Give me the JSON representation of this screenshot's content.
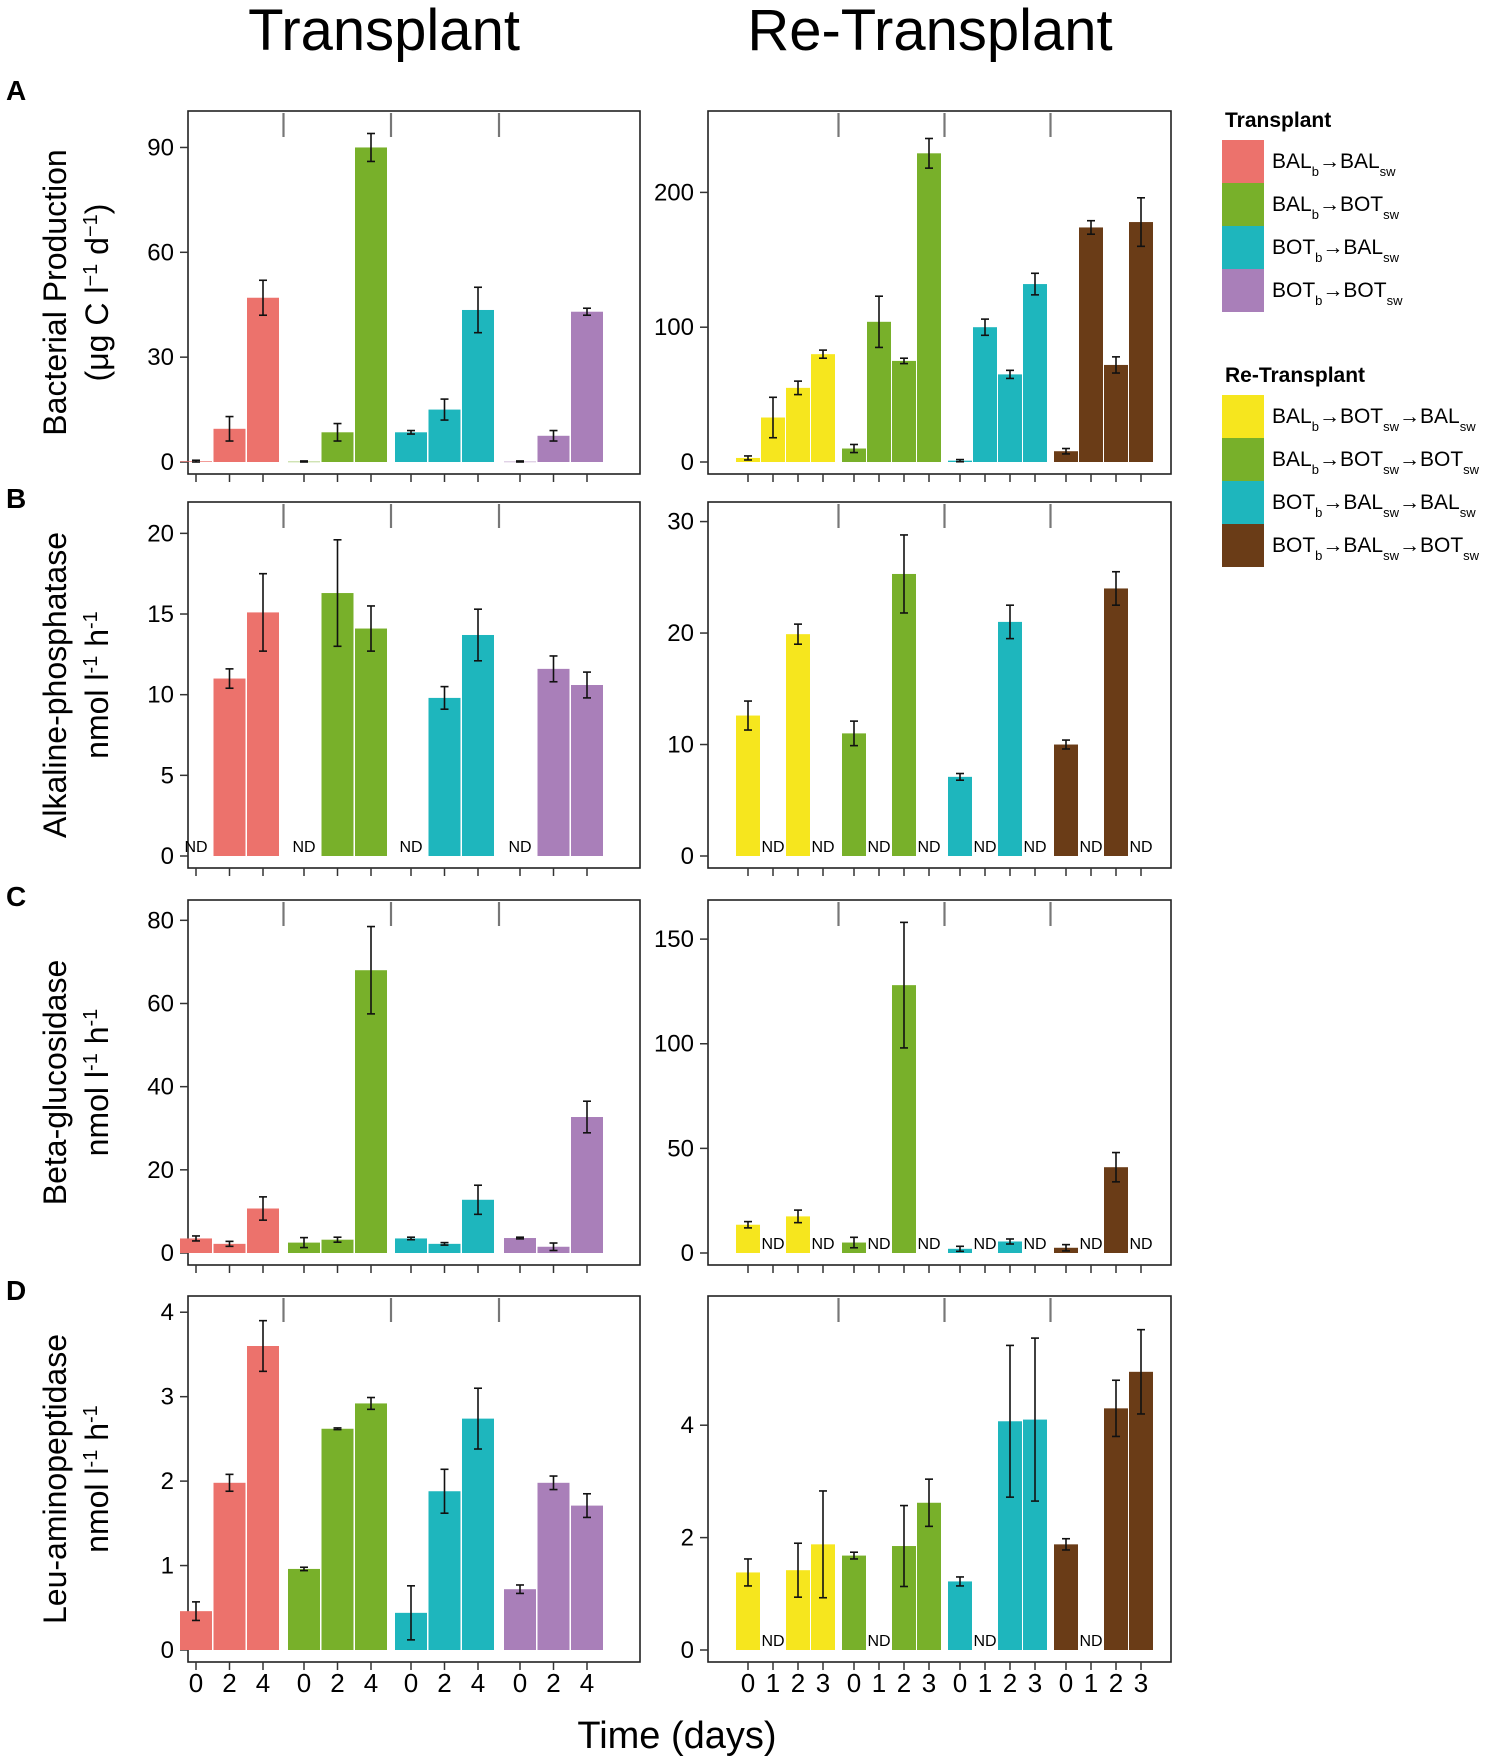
{
  "titles": {
    "transplant": "Transplant",
    "retransplant": "Re-Transplant"
  },
  "x_label": "Time (days)",
  "colors": {
    "BAL_BAL": "#ec726c",
    "BAL_BOT": "#78b02a",
    "BOT_BAL": "#1eb6bd",
    "BOT_BOT": "#a97fb9",
    "R_BAL_BOT_BAL": "#f6e61e",
    "R_BAL_BOT_BOT": "#78b02a",
    "R_BOT_BAL_BAL": "#1eb6bd",
    "R_BOT_BAL_BOT": "#6a3c17"
  },
  "legend": {
    "transplant": {
      "title": "Transplant",
      "items": [
        {
          "parts": [
            [
              "BAL",
              ""
            ],
            [
              "b",
              "sub"
            ],
            [
              "→",
              ""
            ],
            [
              "BAL",
              ""
            ],
            [
              "sw",
              "sub"
            ]
          ],
          "color_key": "BAL_BAL"
        },
        {
          "parts": [
            [
              "BAL",
              ""
            ],
            [
              "b",
              "sub"
            ],
            [
              "→",
              ""
            ],
            [
              "BOT",
              ""
            ],
            [
              "sw",
              "sub"
            ]
          ],
          "color_key": "BAL_BOT"
        },
        {
          "parts": [
            [
              "BOT",
              ""
            ],
            [
              "b",
              "sub"
            ],
            [
              "→",
              ""
            ],
            [
              "BAL",
              ""
            ],
            [
              "sw",
              "sub"
            ]
          ],
          "color_key": "BOT_BAL"
        },
        {
          "parts": [
            [
              "BOT",
              ""
            ],
            [
              "b",
              "sub"
            ],
            [
              "→",
              ""
            ],
            [
              "BOT",
              ""
            ],
            [
              "sw",
              "sub"
            ]
          ],
          "color_key": "BOT_BOT"
        }
      ]
    },
    "retransplant": {
      "title": "Re-Transplant",
      "items": [
        {
          "parts": [
            [
              "BAL",
              ""
            ],
            [
              "b",
              "sub"
            ],
            [
              "→",
              ""
            ],
            [
              "BOT",
              ""
            ],
            [
              "sw",
              "sub"
            ],
            [
              "→",
              ""
            ],
            [
              "BAL",
              ""
            ],
            [
              "sw",
              "sub"
            ]
          ],
          "color_key": "R_BAL_BOT_BAL"
        },
        {
          "parts": [
            [
              "BAL",
              ""
            ],
            [
              "b",
              "sub"
            ],
            [
              "→",
              ""
            ],
            [
              "BOT",
              ""
            ],
            [
              "sw",
              "sub"
            ],
            [
              "→",
              ""
            ],
            [
              "BOT",
              ""
            ],
            [
              "sw",
              "sub"
            ]
          ],
          "color_key": "R_BAL_BOT_BOT"
        },
        {
          "parts": [
            [
              "BOT",
              ""
            ],
            [
              "b",
              "sub"
            ],
            [
              "→",
              ""
            ],
            [
              "BAL",
              ""
            ],
            [
              "sw",
              "sub"
            ],
            [
              "→",
              ""
            ],
            [
              "BAL",
              ""
            ],
            [
              "sw",
              "sub"
            ]
          ],
          "color_key": "R_BOT_BAL_BAL"
        },
        {
          "parts": [
            [
              "BOT",
              ""
            ],
            [
              "b",
              "sub"
            ],
            [
              "→",
              ""
            ],
            [
              "BAL",
              ""
            ],
            [
              "sw",
              "sub"
            ],
            [
              "→",
              ""
            ],
            [
              "BOT",
              ""
            ],
            [
              "sw",
              "sub"
            ]
          ],
          "color_key": "R_BOT_BAL_BOT"
        }
      ]
    }
  },
  "chart_data": [
    {
      "panel": "A",
      "side": "transplant",
      "type": "bar",
      "ylabel": [
        [
          [
            "Bacterial Production",
            ""
          ]
        ],
        [
          [
            "(μg C l",
            ""
          ],
          [
            "−1",
            "sup"
          ],
          [
            " d",
            ""
          ],
          [
            "−1",
            "sup"
          ],
          [
            ")",
            ""
          ]
        ]
      ],
      "ylim": [
        0,
        97
      ],
      "yticks": [
        0,
        30,
        60,
        90
      ],
      "groups": [
        {
          "color_key": "BAL_BAL",
          "labels": [
            "0",
            "2",
            "4"
          ],
          "values": [
            0.2,
            9.5,
            47
          ],
          "errors": [
            0.3,
            3.5,
            5
          ]
        },
        {
          "color_key": "BAL_BOT",
          "labels": [
            "0",
            "2",
            "4"
          ],
          "values": [
            0.1,
            8.5,
            90
          ],
          "errors": [
            0.2,
            2.5,
            4
          ]
        },
        {
          "color_key": "BOT_BAL",
          "labels": [
            "0",
            "2",
            "4"
          ],
          "values": [
            8.5,
            15,
            43.5
          ],
          "errors": [
            0.5,
            3,
            6.5
          ]
        },
        {
          "color_key": "BOT_BOT",
          "labels": [
            "0",
            "2",
            "4"
          ],
          "values": [
            0.1,
            7.5,
            43
          ],
          "errors": [
            0.2,
            1.5,
            1
          ]
        }
      ]
    },
    {
      "panel": "A",
      "side": "retransplant",
      "type": "bar",
      "ylabel": null,
      "ylim": [
        0,
        250
      ],
      "yticks": [
        0,
        100,
        200
      ],
      "groups": [
        {
          "color_key": "R_BAL_BOT_BAL",
          "labels": [
            "0",
            "1",
            "2",
            "3"
          ],
          "values": [
            3,
            33,
            55,
            80
          ],
          "errors": [
            1.5,
            15,
            5,
            3
          ]
        },
        {
          "color_key": "R_BAL_BOT_BOT",
          "labels": [
            "0",
            "1",
            "2",
            "3"
          ],
          "values": [
            10,
            104,
            75,
            229
          ],
          "errors": [
            3,
            19,
            2,
            11
          ]
        },
        {
          "color_key": "R_BOT_BAL_BAL",
          "labels": [
            "0",
            "1",
            "2",
            "3"
          ],
          "values": [
            1,
            100,
            65,
            132
          ],
          "errors": [
            0.8,
            6,
            3,
            8
          ]
        },
        {
          "color_key": "R_BOT_BAL_BOT",
          "labels": [
            "0",
            "1",
            "2",
            "3"
          ],
          "values": [
            8,
            174,
            72,
            178
          ],
          "errors": [
            2,
            5,
            6,
            18
          ]
        }
      ]
    },
    {
      "panel": "B",
      "side": "transplant",
      "type": "bar",
      "ylabel": [
        [
          [
            "Alkaline-phosphatase",
            ""
          ]
        ],
        [
          [
            "nmol l",
            ""
          ],
          [
            "-1",
            "sup"
          ],
          [
            " h",
            ""
          ],
          [
            "-1",
            "sup"
          ]
        ]
      ],
      "ylim": [
        0,
        21.2
      ],
      "yticks": [
        0,
        5,
        10,
        15,
        20
      ],
      "groups": [
        {
          "color_key": "BAL_BAL",
          "labels": [
            "0",
            "2",
            "4"
          ],
          "values": [
            null,
            11,
            15.1
          ],
          "errors": [
            0,
            0.6,
            2.4
          ]
        },
        {
          "color_key": "BAL_BOT",
          "labels": [
            "0",
            "2",
            "4"
          ],
          "values": [
            null,
            16.3,
            14.1
          ],
          "errors": [
            0,
            3.3,
            1.4
          ]
        },
        {
          "color_key": "BOT_BAL",
          "labels": [
            "0",
            "2",
            "4"
          ],
          "values": [
            null,
            9.8,
            13.7
          ],
          "errors": [
            0,
            0.7,
            1.6
          ]
        },
        {
          "color_key": "BOT_BOT",
          "labels": [
            "0",
            "2",
            "4"
          ],
          "values": [
            null,
            11.6,
            10.6
          ],
          "errors": [
            0,
            0.8,
            0.8
          ]
        }
      ]
    },
    {
      "panel": "B",
      "side": "retransplant",
      "type": "bar",
      "ylabel": null,
      "ylim": [
        0,
        30.5
      ],
      "yticks": [
        0,
        10,
        20,
        30
      ],
      "groups": [
        {
          "color_key": "R_BAL_BOT_BAL",
          "labels": [
            "0",
            "1",
            "2",
            "3"
          ],
          "values": [
            12.6,
            null,
            19.9,
            null
          ],
          "errors": [
            1.3,
            0,
            0.9,
            0
          ]
        },
        {
          "color_key": "R_BAL_BOT_BOT",
          "labels": [
            "0",
            "1",
            "2",
            "3"
          ],
          "values": [
            11,
            null,
            25.3,
            null
          ],
          "errors": [
            1.1,
            0,
            3.5,
            0
          ]
        },
        {
          "color_key": "R_BOT_BAL_BAL",
          "labels": [
            "0",
            "1",
            "2",
            "3"
          ],
          "values": [
            7.1,
            null,
            21,
            null
          ],
          "errors": [
            0.3,
            0,
            1.5,
            0
          ]
        },
        {
          "color_key": "R_BOT_BAL_BOT",
          "labels": [
            "0",
            "1",
            "2",
            "3"
          ],
          "values": [
            10,
            null,
            24,
            null
          ],
          "errors": [
            0.4,
            0,
            1.5,
            0
          ]
        }
      ]
    },
    {
      "panel": "C",
      "side": "transplant",
      "type": "bar",
      "ylabel": [
        [
          [
            "Beta-glucosidase",
            ""
          ]
        ],
        [
          [
            "nmol l",
            ""
          ],
          [
            "-1",
            "sup"
          ],
          [
            " h",
            ""
          ],
          [
            "-1",
            "sup"
          ]
        ]
      ],
      "ylim": [
        0,
        82
      ],
      "yticks": [
        0,
        20,
        40,
        60,
        80
      ],
      "groups": [
        {
          "color_key": "BAL_BAL",
          "labels": [
            "0",
            "2",
            "4"
          ],
          "values": [
            3.5,
            2.2,
            10.7
          ],
          "errors": [
            0.6,
            0.6,
            2.8
          ]
        },
        {
          "color_key": "BAL_BOT",
          "labels": [
            "0",
            "2",
            "4"
          ],
          "values": [
            2.5,
            3.2,
            68
          ],
          "errors": [
            1.2,
            0.6,
            10.5
          ]
        },
        {
          "color_key": "BOT_BAL",
          "labels": [
            "0",
            "2",
            "4"
          ],
          "values": [
            3.5,
            2.2,
            12.8
          ],
          "errors": [
            0.3,
            0.3,
            3.5
          ]
        },
        {
          "color_key": "BOT_BOT",
          "labels": [
            "0",
            "2",
            "4"
          ],
          "values": [
            3.6,
            1.5,
            32.7
          ],
          "errors": [
            0.2,
            0.9,
            3.8
          ]
        }
      ]
    },
    {
      "panel": "C",
      "side": "retransplant",
      "type": "bar",
      "ylabel": null,
      "ylim": [
        0,
        162
      ],
      "yticks": [
        0,
        50,
        100,
        150
      ],
      "groups": [
        {
          "color_key": "R_BAL_BOT_BAL",
          "labels": [
            "0",
            "1",
            "2",
            "3"
          ],
          "values": [
            13.5,
            null,
            17.5,
            null
          ],
          "errors": [
            1.5,
            0,
            3,
            0
          ]
        },
        {
          "color_key": "R_BAL_BOT_BOT",
          "labels": [
            "0",
            "1",
            "2",
            "3"
          ],
          "values": [
            5,
            null,
            128,
            null
          ],
          "errors": [
            2.5,
            0,
            30,
            0
          ]
        },
        {
          "color_key": "R_BOT_BAL_BAL",
          "labels": [
            "0",
            "1",
            "2",
            "3"
          ],
          "values": [
            2,
            null,
            5.5,
            null
          ],
          "errors": [
            1.2,
            0,
            1.2,
            0
          ]
        },
        {
          "color_key": "R_BOT_BAL_BOT",
          "labels": [
            "0",
            "1",
            "2",
            "3"
          ],
          "values": [
            2.5,
            null,
            41,
            null
          ],
          "errors": [
            1.5,
            0,
            7,
            0
          ]
        }
      ]
    },
    {
      "panel": "D",
      "side": "transplant",
      "type": "bar",
      "ylabel": [
        [
          [
            "Leu-aminopeptidase",
            ""
          ]
        ],
        [
          [
            "nmol l",
            ""
          ],
          [
            "-1",
            "sup"
          ],
          [
            " h",
            ""
          ],
          [
            "-1",
            "sup"
          ]
        ]
      ],
      "ylim": [
        0,
        4.05
      ],
      "yticks": [
        0,
        1,
        2,
        3,
        4
      ],
      "groups": [
        {
          "color_key": "BAL_BAL",
          "labels": [
            "0",
            "2",
            "4"
          ],
          "values": [
            0.46,
            1.98,
            3.6
          ],
          "errors": [
            0.11,
            0.1,
            0.3
          ]
        },
        {
          "color_key": "BAL_BOT",
          "labels": [
            "0",
            "2",
            "4"
          ],
          "values": [
            0.96,
            2.62,
            2.92
          ],
          "errors": [
            0.02,
            0.01,
            0.07
          ]
        },
        {
          "color_key": "BOT_BAL",
          "labels": [
            "0",
            "2",
            "4"
          ],
          "values": [
            0.44,
            1.88,
            2.74
          ],
          "errors": [
            0.32,
            0.26,
            0.36
          ]
        },
        {
          "color_key": "BOT_BOT",
          "labels": [
            "0",
            "2",
            "4"
          ],
          "values": [
            0.72,
            1.98,
            1.71
          ],
          "errors": [
            0.05,
            0.08,
            0.14
          ]
        }
      ]
    },
    {
      "panel": "D",
      "side": "retransplant",
      "type": "bar",
      "ylabel": null,
      "ylim": [
        0,
        6.05
      ],
      "yticks": [
        0,
        2,
        4
      ],
      "groups": [
        {
          "color_key": "R_BAL_BOT_BAL",
          "labels": [
            "0",
            "1",
            "2",
            "3"
          ],
          "values": [
            1.38,
            null,
            1.42,
            1.88
          ],
          "errors": [
            0.24,
            0,
            0.48,
            0.95
          ]
        },
        {
          "color_key": "R_BAL_BOT_BOT",
          "labels": [
            "0",
            "1",
            "2",
            "3"
          ],
          "values": [
            1.68,
            null,
            1.85,
            2.62
          ],
          "errors": [
            0.06,
            0,
            0.72,
            0.42
          ]
        },
        {
          "color_key": "R_BOT_BAL_BAL",
          "labels": [
            "0",
            "1",
            "2",
            "3"
          ],
          "values": [
            1.22,
            null,
            4.07,
            4.1
          ],
          "errors": [
            0.08,
            0,
            1.35,
            1.45
          ]
        },
        {
          "color_key": "R_BOT_BAL_BOT",
          "labels": [
            "0",
            "1",
            "2",
            "3"
          ],
          "values": [
            1.88,
            null,
            4.3,
            4.95
          ],
          "errors": [
            0.1,
            0,
            0.5,
            0.75
          ]
        }
      ]
    }
  ]
}
